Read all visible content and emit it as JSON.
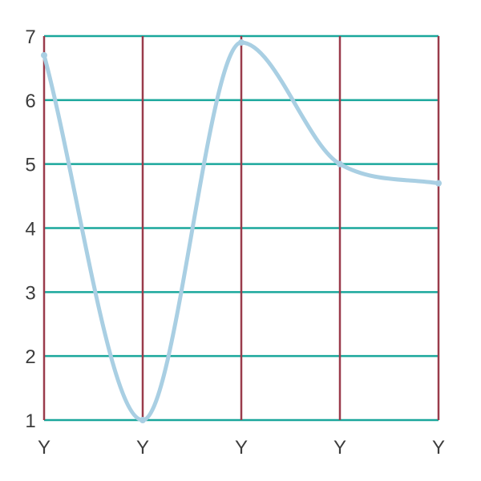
{
  "chart_data": {
    "type": "line",
    "categories": [
      "Y",
      "Y",
      "Y",
      "Y",
      "Y"
    ],
    "series": [
      {
        "values": [
          6.7,
          1.0,
          6.9,
          5.0,
          4.7
        ]
      }
    ],
    "ylim": [
      1,
      7
    ],
    "y_ticks": [
      "1",
      "2",
      "3",
      "4",
      "5",
      "6",
      "7"
    ],
    "grid": true,
    "colors": {
      "line": "#a9cfe3",
      "horizontal_grid": "#1aa79c",
      "vertical_grid": "#9a3b4b",
      "tick_text": "#3d3d3d"
    }
  }
}
